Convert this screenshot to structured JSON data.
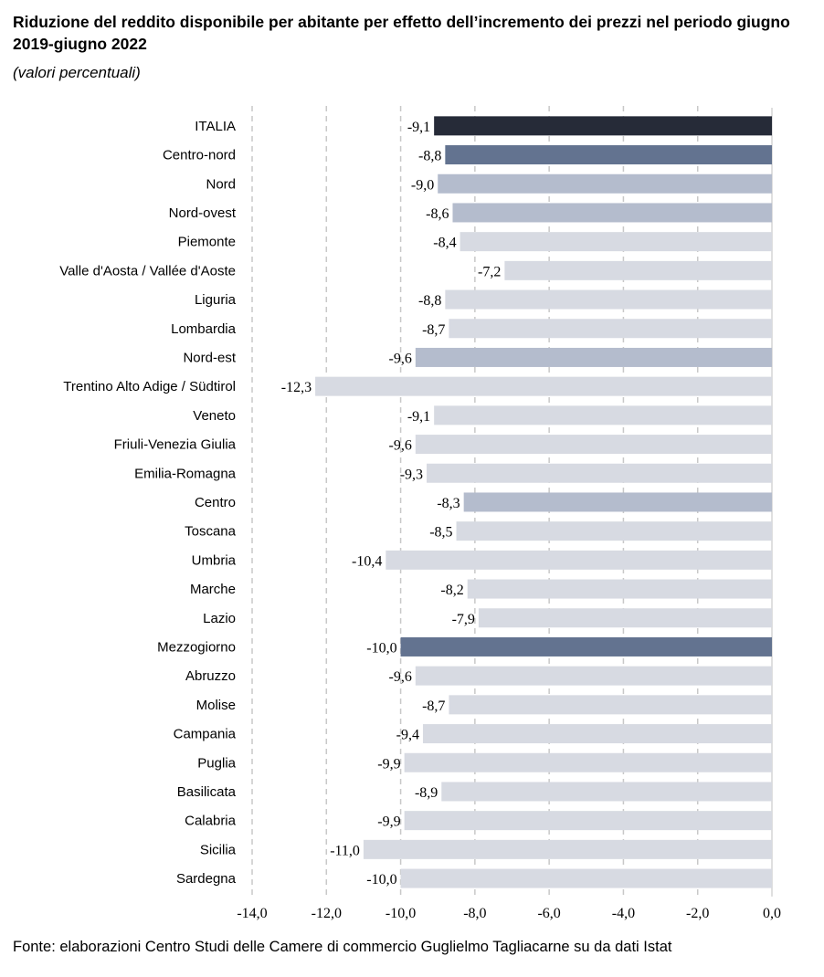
{
  "title": "Riduzione del reddito disponibile per abitante per effetto dell’incremento dei prezzi nel periodo giugno 2019-giugno 2022",
  "subtitle": "(valori percentuali)",
  "source": "Fonte: elaborazioni Centro Studi delle Camere di commercio Guglielmo Tagliacarne su da dati Istat",
  "colors": {
    "italia": "#262b38",
    "macro": "#637390",
    "area": "#b4bccd",
    "region": "#d7dae2",
    "grid": "#c8c8c8"
  },
  "chart_data": {
    "type": "bar",
    "orientation": "horizontal",
    "categories": [
      "ITALIA",
      "Centro-nord",
      "Nord",
      "Nord-ovest",
      "Piemonte",
      "Valle d'Aosta / Vallée d'Aoste",
      "Liguria",
      "Lombardia",
      "Nord-est",
      "Trentino Alto Adige / Südtirol",
      "Veneto",
      "Friuli-Venezia Giulia",
      "Emilia-Romagna",
      "Centro",
      "Toscana",
      "Umbria",
      "Marche",
      "Lazio",
      "Mezzogiorno",
      "Abruzzo",
      "Molise",
      "Campania",
      "Puglia",
      "Basilicata",
      "Calabria",
      "Sicilia",
      "Sardegna"
    ],
    "values": [
      -9.1,
      -8.8,
      -9.0,
      -8.6,
      -8.4,
      -7.2,
      -8.8,
      -8.7,
      -9.6,
      -12.3,
      -9.1,
      -9.6,
      -9.3,
      -8.3,
      -8.5,
      -10.4,
      -8.2,
      -7.9,
      -10.0,
      -9.6,
      -8.7,
      -9.4,
      -9.9,
      -8.9,
      -9.9,
      -11.0,
      -10.0
    ],
    "value_labels": [
      "-9,1",
      "-8,8",
      "-9,0",
      "-8,6",
      "-8,4",
      "-7,2",
      "-8,8",
      "-8,7",
      "-9,6",
      "-12,3",
      "-9,1",
      "-9,6",
      "-9,3",
      "-8,3",
      "-8,5",
      "-10,4",
      "-8,2",
      "-7,9",
      "-10,0",
      "-9,6",
      "-8,7",
      "-9,4",
      "-9,9",
      "-8,9",
      "-9,9",
      "-11,0",
      "-10,0"
    ],
    "levels": [
      "italia",
      "macro",
      "area",
      "area",
      "region",
      "region",
      "region",
      "region",
      "area",
      "region",
      "region",
      "region",
      "region",
      "area",
      "region",
      "region",
      "region",
      "region",
      "macro",
      "region",
      "region",
      "region",
      "region",
      "region",
      "region",
      "region",
      "region"
    ],
    "xlim": [
      -14,
      0
    ],
    "xticks": [
      -14,
      -12,
      -10,
      -8,
      -6,
      -4,
      -2,
      0
    ],
    "xtick_labels": [
      "-14,0",
      "-12,0",
      "-10,0",
      "-8,0",
      "-6,0",
      "-4,0",
      "-2,0",
      "0,0"
    ],
    "grid": "vertical-dashed",
    "legend": "none"
  }
}
